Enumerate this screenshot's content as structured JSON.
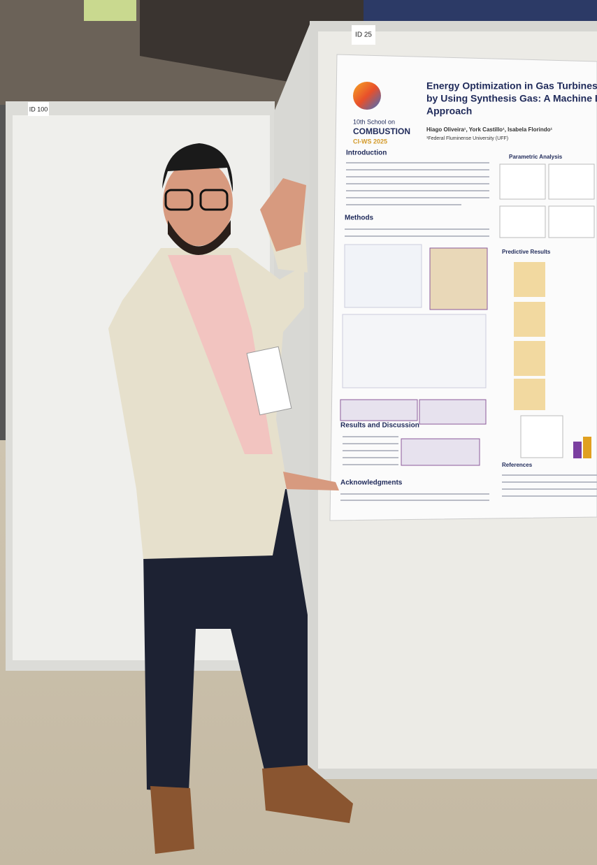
{
  "booth_labels": [
    "ID 100",
    "ID 25"
  ],
  "poster": {
    "event": {
      "edition": "10th School on",
      "name": "COMBUSTION",
      "sub": "CI-WS 2025"
    },
    "title_lines": [
      "Energy Optimization in Gas Turbines Power",
      "by Using Synthesis Gas: A Machine Learning",
      "Approach"
    ],
    "authors": "Hiago Oliveira¹, York Castillo¹, Isabela Florindo¹",
    "affiliation": "¹Federal Fluminense University (UFF)",
    "sections": [
      "Introduction",
      "Methods",
      "Results and Discussion",
      "Acknowledgments"
    ],
    "side_sections": [
      "Parametric Analysis",
      "Predictive Results",
      "References"
    ]
  }
}
